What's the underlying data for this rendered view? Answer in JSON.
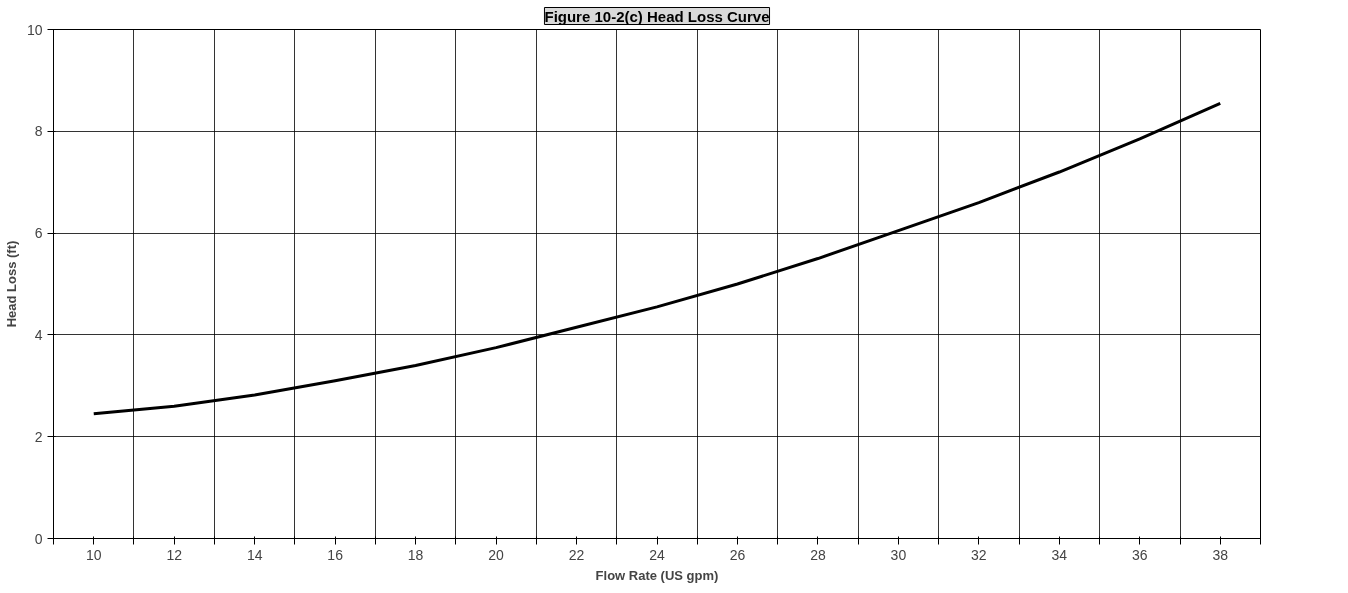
{
  "chart_data": {
    "type": "line",
    "title": "Figure 10-2(c) Head Loss Curve",
    "xlabel": "Flow Rate (US gpm)",
    "ylabel": "Head Loss (ft)",
    "x": [
      10,
      12,
      14,
      16,
      18,
      20,
      22,
      24,
      26,
      28,
      30,
      32,
      34,
      36,
      38
    ],
    "series": [
      {
        "color": "#000000",
        "values": [
          2.45,
          2.6,
          2.82,
          3.1,
          3.4,
          3.75,
          4.15,
          4.55,
          5.0,
          5.5,
          6.05,
          6.6,
          7.2,
          7.85,
          8.55
        ]
      }
    ],
    "xlim": [
      9,
      39
    ],
    "xticks": [
      {
        "value": 9,
        "label": null
      },
      10,
      {
        "value": 11,
        "label": null
      },
      12,
      {
        "value": 13,
        "label": null
      },
      14,
      {
        "value": 15,
        "label": null
      },
      16,
      {
        "value": 17,
        "label": null
      },
      18,
      {
        "value": 19,
        "label": null
      },
      20,
      {
        "value": 21,
        "label": null
      },
      22,
      {
        "value": 23,
        "label": null
      },
      24,
      {
        "value": 25,
        "label": null
      },
      26,
      {
        "value": 27,
        "label": null
      },
      28,
      {
        "value": 29,
        "label": null
      },
      30,
      {
        "value": 31,
        "label": null
      },
      32,
      {
        "value": 33,
        "label": null
      },
      34,
      {
        "value": 35,
        "label": null
      },
      36,
      {
        "value": 37,
        "label": null
      },
      38,
      {
        "value": 39,
        "label": null
      }
    ],
    "ylim": [
      0,
      10
    ],
    "yticks": [
      0,
      2,
      4,
      6,
      8,
      10
    ],
    "grid": true,
    "marker": "none",
    "line_style": "solid"
  }
}
